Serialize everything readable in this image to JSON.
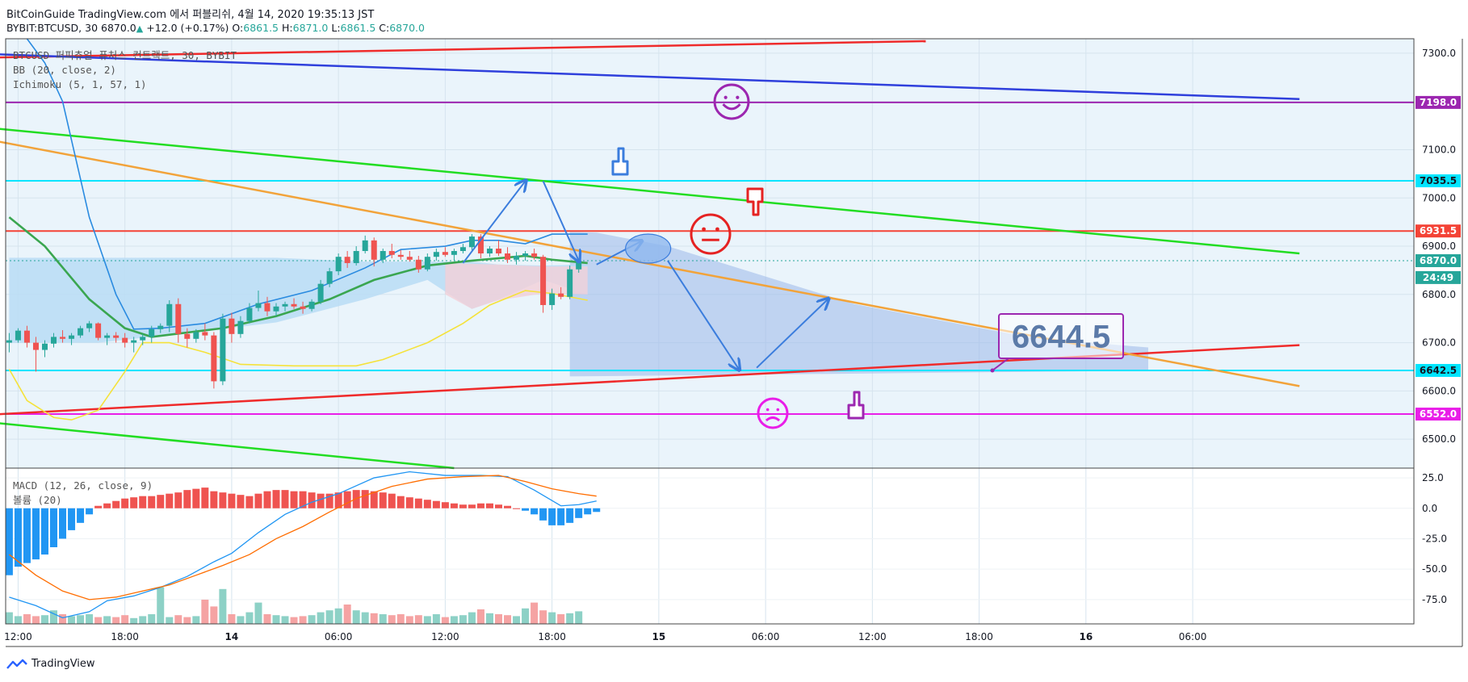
{
  "header": {
    "line1": "BitCoinGuide TradingView.com 에서 퍼블리쉬, 4월 14, 2020 19:35:13 JST",
    "symbol": "BYBIT:BTCUSD, 30",
    "last": "6870.0",
    "change": "+12.0 (+0.17%)",
    "o_label": "O:",
    "o": "6861.5",
    "h_label": "H:",
    "h": "6871.0",
    "l_label": "L:",
    "l": "6861.5",
    "c_label": "C:",
    "c": "6870.0"
  },
  "legend": {
    "title": "BTCUSD 퍼피츄얼 퓨처스 컨트랙트, 30, BYBIT",
    "bb": "BB (20, close, 2)",
    "ichimoku": "Ichimoku (5, 1, 57, 1)"
  },
  "macd_legend": {
    "macd": "MACD (12, 26, close, 9)",
    "volume": "볼륨 (20)"
  },
  "brand": "TradingView",
  "annotation": "6644.5",
  "chart_data": {
    "type": "candlestick",
    "price_axis": {
      "ylim": [
        6440,
        7330
      ],
      "ticks": [
        "7300.0",
        "7200.0",
        "7100.0",
        "7000.0",
        "6900.0",
        "6800.0",
        "6700.0",
        "6600.0",
        "6500.0"
      ]
    },
    "price_labels": [
      {
        "text": "7198.0",
        "value": 7198,
        "color": "#9c27b0"
      },
      {
        "text": "7035.5",
        "value": 7035.5,
        "color": "#00e5ff"
      },
      {
        "text": "6931.5",
        "value": 6931.5,
        "color": "#f44336"
      },
      {
        "text": "6870.0",
        "value": 6870,
        "color": "#26a69a"
      },
      {
        "text": "24:49",
        "value": 6835,
        "color": "#26a69a"
      },
      {
        "text": "6642.5",
        "value": 6642.5,
        "color": "#00e5ff"
      },
      {
        "text": "6552.0",
        "value": 6552,
        "color": "#e91ee8"
      }
    ],
    "time_axis": {
      "ticks": [
        {
          "label": "12:00",
          "t": 1
        },
        {
          "label": "18:00",
          "t": 13
        },
        {
          "label": "14",
          "t": 25
        },
        {
          "label": "06:00",
          "t": 37
        },
        {
          "label": "12:00",
          "t": 49
        },
        {
          "label": "18:00",
          "t": 61
        },
        {
          "label": "15",
          "t": 73
        },
        {
          "label": "06:00",
          "t": 85
        },
        {
          "label": "12:00",
          "t": 97
        },
        {
          "label": "18:00",
          "t": 109
        },
        {
          "label": "16",
          "t": 121
        },
        {
          "label": "06:00",
          "t": 133
        }
      ]
    },
    "macd_axis": {
      "ylim": [
        -95,
        33
      ],
      "ticks": [
        "25.0",
        "0.0",
        "-25.0",
        "-50.0",
        "-75.0"
      ]
    },
    "candles": [
      [
        6700,
        6720,
        6680,
        6705
      ],
      [
        6705,
        6730,
        6700,
        6725
      ],
      [
        6725,
        6735,
        6690,
        6700
      ],
      [
        6700,
        6712,
        6640,
        6685
      ],
      [
        6685,
        6705,
        6670,
        6698
      ],
      [
        6698,
        6720,
        6690,
        6712
      ],
      [
        6712,
        6726,
        6700,
        6708
      ],
      [
        6708,
        6720,
        6695,
        6715
      ],
      [
        6715,
        6735,
        6710,
        6730
      ],
      [
        6730,
        6745,
        6722,
        6740
      ],
      [
        6740,
        6742,
        6705,
        6710
      ],
      [
        6710,
        6720,
        6695,
        6715
      ],
      [
        6715,
        6722,
        6700,
        6710
      ],
      [
        6710,
        6720,
        6690,
        6700
      ],
      [
        6700,
        6712,
        6680,
        6705
      ],
      [
        6705,
        6718,
        6695,
        6712
      ],
      [
        6712,
        6735,
        6700,
        6728
      ],
      [
        6728,
        6740,
        6720,
        6735
      ],
      [
        6735,
        6788,
        6722,
        6780
      ],
      [
        6780,
        6792,
        6700,
        6718
      ],
      [
        6718,
        6730,
        6690,
        6708
      ],
      [
        6708,
        6728,
        6700,
        6722
      ],
      [
        6722,
        6740,
        6705,
        6715
      ],
      [
        6715,
        6722,
        6605,
        6620
      ],
      [
        6620,
        6760,
        6612,
        6750
      ],
      [
        6750,
        6762,
        6700,
        6718
      ],
      [
        6718,
        6755,
        6710,
        6745
      ],
      [
        6745,
        6782,
        6740,
        6772
      ],
      [
        6772,
        6808,
        6765,
        6782
      ],
      [
        6782,
        6795,
        6755,
        6765
      ],
      [
        6765,
        6782,
        6755,
        6775
      ],
      [
        6775,
        6785,
        6765,
        6780
      ],
      [
        6780,
        6792,
        6770,
        6775
      ],
      [
        6775,
        6785,
        6760,
        6770
      ],
      [
        6770,
        6790,
        6765,
        6785
      ],
      [
        6785,
        6830,
        6780,
        6822
      ],
      [
        6822,
        6855,
        6815,
        6848
      ],
      [
        6848,
        6885,
        6840,
        6878
      ],
      [
        6878,
        6890,
        6855,
        6865
      ],
      [
        6865,
        6900,
        6860,
        6890
      ],
      [
        6890,
        6922,
        6885,
        6912
      ],
      [
        6912,
        6918,
        6858,
        6872
      ],
      [
        6872,
        6895,
        6865,
        6890
      ],
      [
        6890,
        6905,
        6875,
        6882
      ],
      [
        6882,
        6892,
        6872,
        6878
      ],
      [
        6878,
        6890,
        6868,
        6872
      ],
      [
        6872,
        6880,
        6845,
        6852
      ],
      [
        6852,
        6885,
        6848,
        6878
      ],
      [
        6878,
        6895,
        6870,
        6888
      ],
      [
        6888,
        6898,
        6878,
        6882
      ],
      [
        6882,
        6895,
        6870,
        6890
      ],
      [
        6890,
        6905,
        6885,
        6898
      ],
      [
        6898,
        6925,
        6892,
        6920
      ],
      [
        6920,
        6925,
        6875,
        6885
      ],
      [
        6885,
        6900,
        6878,
        6895
      ],
      [
        6895,
        6912,
        6880,
        6885
      ],
      [
        6885,
        6898,
        6865,
        6872
      ],
      [
        6872,
        6888,
        6862,
        6880
      ],
      [
        6880,
        6890,
        6870,
        6885
      ],
      [
        6885,
        6895,
        6872,
        6878
      ],
      [
        6878,
        6882,
        6762,
        6778
      ],
      [
        6778,
        6812,
        6768,
        6802
      ],
      [
        6802,
        6815,
        6790,
        6795
      ],
      [
        6795,
        6860,
        6790,
        6852
      ],
      [
        6852,
        6872,
        6845,
        6870
      ]
    ],
    "bb_basis": [
      [
        0,
        6960
      ],
      [
        4,
        6900
      ],
      [
        9,
        6790
      ],
      [
        13,
        6730
      ],
      [
        16,
        6712
      ],
      [
        24,
        6730
      ],
      [
        30,
        6755
      ],
      [
        36,
        6790
      ],
      [
        41,
        6830
      ],
      [
        47,
        6860
      ],
      [
        52,
        6870
      ],
      [
        58,
        6880
      ],
      [
        61,
        6872
      ],
      [
        65,
        6865
      ]
    ],
    "bb_upper": [
      [
        2,
        7330
      ],
      [
        4,
        7280
      ],
      [
        6,
        7200
      ],
      [
        9,
        6960
      ],
      [
        12,
        6800
      ],
      [
        14,
        6728
      ],
      [
        17,
        6730
      ],
      [
        22,
        6740
      ],
      [
        28,
        6780
      ],
      [
        34,
        6808
      ],
      [
        40,
        6855
      ],
      [
        44,
        6893
      ],
      [
        49,
        6900
      ],
      [
        52,
        6912
      ],
      [
        55,
        6912
      ],
      [
        58,
        6905
      ],
      [
        61,
        6925
      ],
      [
        65,
        6925
      ]
    ],
    "bb_lower": [
      [
        0,
        6645
      ],
      [
        2,
        6580
      ],
      [
        5,
        6545
      ],
      [
        7,
        6540
      ],
      [
        10,
        6560
      ],
      [
        13,
        6640
      ],
      [
        15,
        6700
      ],
      [
        18,
        6700
      ],
      [
        22,
        6680
      ],
      [
        26,
        6655
      ],
      [
        32,
        6652
      ],
      [
        39,
        6652
      ],
      [
        42,
        6665
      ],
      [
        47,
        6700
      ],
      [
        51,
        6740
      ],
      [
        54,
        6778
      ],
      [
        58,
        6808
      ],
      [
        61,
        6802
      ],
      [
        65,
        6788
      ]
    ],
    "cloud": [
      [
        0,
        6876,
        6700
      ],
      [
        10,
        6876,
        6700
      ],
      [
        20,
        6876,
        6720
      ],
      [
        30,
        6876,
        6742
      ],
      [
        40,
        6868,
        6790
      ],
      [
        47,
        6868,
        6830
      ],
      [
        52,
        6868,
        6770
      ],
      [
        55,
        6862,
        6790
      ],
      [
        60,
        6860,
        6830
      ],
      [
        65,
        6862,
        6800
      ]
    ],
    "shade_region": [
      [
        63,
        6930
      ],
      [
        66,
        6928
      ],
      [
        74,
        6900
      ],
      [
        95,
        6780
      ],
      [
        115,
        6710
      ],
      [
        128,
        6690
      ],
      [
        128,
        6642
      ],
      [
        63,
        6630
      ]
    ],
    "trendlines": [
      {
        "name": "resistance-red",
        "color": "#ef2b2b",
        "p1": [
          -5,
          6705
        ],
        "p2": [
          152,
          6690
        ],
        "points": [
          [
            -5,
            6548
          ],
          [
            145,
            6695
          ]
        ]
      },
      {
        "name": "upper-red",
        "color": "#ef2b2b",
        "points": [
          [
            -5,
            7290
          ],
          [
            103,
            7325
          ]
        ]
      },
      {
        "name": "blue-long",
        "color": "#2f3fdc",
        "points": [
          [
            -5,
            7300
          ],
          [
            145,
            7205
          ]
        ]
      },
      {
        "name": "green-upper",
        "color": "#22dd22",
        "points": [
          [
            -5,
            7150
          ],
          [
            145,
            6885
          ]
        ]
      },
      {
        "name": "green-lower",
        "color": "#22dd22",
        "points": [
          [
            -5,
            6540
          ],
          [
            50,
            6440
          ]
        ]
      },
      {
        "name": "orange",
        "color": "#f2a33a",
        "points": [
          [
            -5,
            7130
          ],
          [
            145,
            6610
          ]
        ]
      }
    ],
    "hlines": [
      {
        "value": 7198,
        "color": "#9c27b0"
      },
      {
        "value": 7035.5,
        "color": "#00e5ff"
      },
      {
        "value": 6931.5,
        "color": "#f44336"
      },
      {
        "value": 6642.5,
        "color": "#00e5ff"
      },
      {
        "value": 6552,
        "color": "#e91ee8"
      }
    ],
    "macd_hist": [
      -55,
      -48,
      -45,
      -42,
      -38,
      -32,
      -25,
      -18,
      -12,
      -5,
      2,
      4,
      6,
      8,
      9,
      10,
      10,
      11,
      12,
      13,
      15,
      16,
      17,
      14,
      13,
      12,
      11,
      10,
      12,
      14,
      15,
      15,
      14,
      14,
      13,
      12,
      12,
      13,
      14,
      15,
      15,
      14,
      13,
      12,
      10,
      9,
      8,
      7,
      6,
      5,
      4,
      3,
      3,
      4,
      4,
      3,
      2,
      0,
      -2,
      -5,
      -10,
      -14,
      -14,
      -12,
      -8,
      -5,
      -3
    ],
    "macd_line": [
      [
        0,
        -73
      ],
      [
        3,
        -80
      ],
      [
        6,
        -90
      ],
      [
        9,
        -85
      ],
      [
        11,
        -76
      ],
      [
        14,
        -72
      ],
      [
        17,
        -65
      ],
      [
        20,
        -56
      ],
      [
        23,
        -44
      ],
      [
        25,
        -37
      ],
      [
        28,
        -20
      ],
      [
        31,
        -5
      ],
      [
        34,
        5
      ],
      [
        37,
        12
      ],
      [
        41,
        25
      ],
      [
        45,
        30
      ],
      [
        49,
        27
      ],
      [
        53,
        27
      ],
      [
        56,
        26
      ],
      [
        59,
        15
      ],
      [
        62,
        2
      ],
      [
        64,
        3
      ],
      [
        66,
        6
      ]
    ],
    "signal_line": [
      [
        0,
        -38
      ],
      [
        3,
        -55
      ],
      [
        6,
        -68
      ],
      [
        9,
        -75
      ],
      [
        12,
        -73
      ],
      [
        15,
        -68
      ],
      [
        18,
        -63
      ],
      [
        21,
        -55
      ],
      [
        24,
        -47
      ],
      [
        27,
        -38
      ],
      [
        30,
        -25
      ],
      [
        33,
        -15
      ],
      [
        36,
        -3
      ],
      [
        39,
        8
      ],
      [
        43,
        18
      ],
      [
        47,
        24
      ],
      [
        51,
        26
      ],
      [
        55,
        27
      ],
      [
        58,
        22
      ],
      [
        61,
        16
      ],
      [
        64,
        12
      ],
      [
        66,
        10
      ]
    ],
    "volume": [
      12,
      8,
      10,
      8,
      9,
      14,
      10,
      8,
      9,
      10,
      7,
      8,
      7,
      9,
      6,
      8,
      10,
      38,
      7,
      9,
      7,
      8,
      25,
      18,
      36,
      10,
      8,
      12,
      22,
      10,
      9,
      8,
      7,
      8,
      9,
      12,
      14,
      16,
      20,
      14,
      12,
      11,
      10,
      9,
      10,
      8,
      9,
      8,
      10,
      7,
      8,
      9,
      12,
      15,
      11,
      10,
      9,
      8,
      16,
      22,
      14,
      12,
      10,
      11,
      13
    ],
    "cursor_time": 64
  }
}
